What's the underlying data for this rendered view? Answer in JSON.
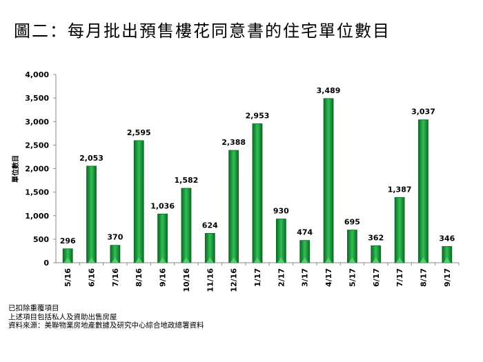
{
  "title": "圖二：每月批出預售樓花同意書的住宅單位數目",
  "notes": [
    "已扣除重覆項目",
    "上述項目包括私人及資助出售房屋",
    "資料來源：美聯物業房地產數據及研究中心綜合地政總署資料"
  ],
  "colors": {
    "bar": "#1e9a3c",
    "bar_dark": "#0d6a24",
    "bar_light": "#5fd47a"
  },
  "chart_data": {
    "type": "bar",
    "title": "",
    "xlabel": "",
    "ylabel": "單位數目",
    "ylim": [
      0,
      4000
    ],
    "yticks": [
      0,
      500,
      1000,
      1500,
      2000,
      2500,
      3000,
      3500,
      4000
    ],
    "ytick_labels": [
      "0",
      "500",
      "1,000",
      "1,500",
      "2,000",
      "2,500",
      "3,000",
      "3,500",
      "4,000"
    ],
    "categories": [
      "5/16",
      "6/16",
      "7/16",
      "8/16",
      "9/16",
      "10/16",
      "11/16",
      "12/16",
      "1/17",
      "2/17",
      "3/17",
      "4/17",
      "5/17",
      "6/17",
      "7/17",
      "8/17",
      "9/17"
    ],
    "values": [
      296,
      2053,
      370,
      2595,
      1036,
      1582,
      624,
      2388,
      2953,
      930,
      474,
      3489,
      695,
      362,
      1387,
      3037,
      346
    ],
    "data_labels": [
      "296",
      "2,053",
      "370",
      "2,595",
      "1,036",
      "1,582",
      "624",
      "2,388",
      "2,953",
      "930",
      "474",
      "3,489",
      "695",
      "362",
      "1,387",
      "3,037",
      "346"
    ],
    "grid": false,
    "legend": "none"
  }
}
